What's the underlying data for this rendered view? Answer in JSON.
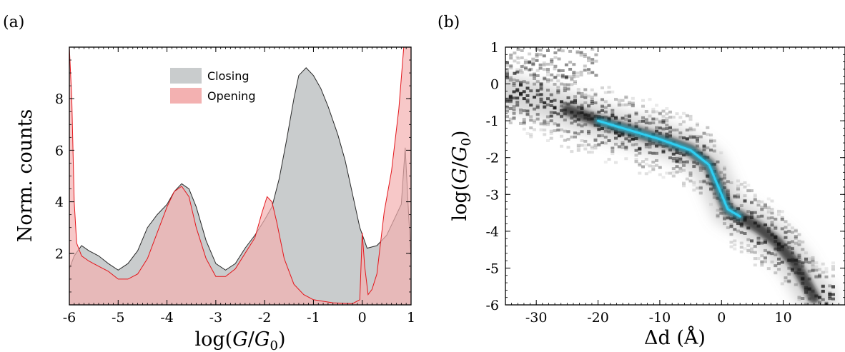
{
  "colors": {
    "closing_fill": "#c9cccd",
    "closing_line": "#2a2a2a",
    "opening_fill": "#f3b1b1",
    "opening_line": "#e4161b",
    "density_dark": "#111111",
    "density_highlight": "#2fd3f7"
  },
  "chart_data": [
    {
      "panel": "(a)",
      "type": "area",
      "xlabel": "log(G/G0)",
      "ylabel": "Norm. counts",
      "xlim": [
        -6,
        1
      ],
      "ylim": [
        0,
        10
      ],
      "x_ticks": [
        -6,
        -5,
        -4,
        -3,
        -2,
        -1,
        0,
        1
      ],
      "x_tick_labels": [
        "-6",
        "-5",
        "-4",
        "-3",
        "-2",
        "-1",
        "0",
        "1"
      ],
      "y_ticks": [
        2,
        4,
        6,
        8
      ],
      "y_tick_labels": [
        "2",
        "4",
        "6",
        "8"
      ],
      "legend": {
        "placement": "top-center",
        "entries": [
          "Closing",
          "Opening"
        ]
      },
      "series": [
        {
          "name": "Closing",
          "points": [
            [
              -6.0,
              1.4
            ],
            [
              -5.9,
              1.9
            ],
            [
              -5.75,
              2.3
            ],
            [
              -5.6,
              2.1
            ],
            [
              -5.4,
              1.9
            ],
            [
              -5.2,
              1.6
            ],
            [
              -5.0,
              1.35
            ],
            [
              -4.8,
              1.6
            ],
            [
              -4.6,
              2.1
            ],
            [
              -4.4,
              3.0
            ],
            [
              -4.2,
              3.5
            ],
            [
              -4.0,
              3.9
            ],
            [
              -3.85,
              4.4
            ],
            [
              -3.7,
              4.7
            ],
            [
              -3.55,
              4.5
            ],
            [
              -3.4,
              3.8
            ],
            [
              -3.2,
              2.5
            ],
            [
              -3.0,
              1.6
            ],
            [
              -2.8,
              1.35
            ],
            [
              -2.6,
              1.6
            ],
            [
              -2.4,
              2.2
            ],
            [
              -2.2,
              2.7
            ],
            [
              -2.0,
              3.3
            ],
            [
              -1.85,
              3.8
            ],
            [
              -1.7,
              4.9
            ],
            [
              -1.55,
              6.4
            ],
            [
              -1.4,
              8.0
            ],
            [
              -1.3,
              8.9
            ],
            [
              -1.15,
              9.2
            ],
            [
              -1.0,
              8.9
            ],
            [
              -0.85,
              8.4
            ],
            [
              -0.7,
              7.7
            ],
            [
              -0.5,
              6.6
            ],
            [
              -0.35,
              5.6
            ],
            [
              -0.2,
              4.3
            ],
            [
              -0.05,
              3.0
            ],
            [
              0.1,
              2.2
            ],
            [
              0.3,
              2.3
            ],
            [
              0.5,
              2.7
            ],
            [
              0.65,
              3.3
            ],
            [
              0.8,
              3.9
            ],
            [
              0.88,
              6.1
            ],
            [
              0.95,
              3.5
            ],
            [
              1.0,
              1.8
            ]
          ]
        },
        {
          "name": "Opening",
          "points": [
            [
              -6.0,
              10.0
            ],
            [
              -5.95,
              8.0
            ],
            [
              -5.9,
              4.0
            ],
            [
              -5.85,
              2.4
            ],
            [
              -5.75,
              1.9
            ],
            [
              -5.6,
              1.7
            ],
            [
              -5.4,
              1.5
            ],
            [
              -5.2,
              1.3
            ],
            [
              -5.0,
              1.0
            ],
            [
              -4.8,
              1.0
            ],
            [
              -4.6,
              1.2
            ],
            [
              -4.4,
              1.8
            ],
            [
              -4.2,
              2.8
            ],
            [
              -4.0,
              3.8
            ],
            [
              -3.85,
              4.4
            ],
            [
              -3.7,
              4.6
            ],
            [
              -3.55,
              4.2
            ],
            [
              -3.4,
              3.0
            ],
            [
              -3.2,
              1.8
            ],
            [
              -3.0,
              1.1
            ],
            [
              -2.8,
              1.1
            ],
            [
              -2.6,
              1.4
            ],
            [
              -2.4,
              2.0
            ],
            [
              -2.2,
              2.6
            ],
            [
              -2.05,
              3.6
            ],
            [
              -1.95,
              4.2
            ],
            [
              -1.85,
              4.0
            ],
            [
              -1.75,
              3.2
            ],
            [
              -1.6,
              1.8
            ],
            [
              -1.4,
              0.8
            ],
            [
              -1.2,
              0.4
            ],
            [
              -1.0,
              0.2
            ],
            [
              -0.6,
              0.08
            ],
            [
              -0.2,
              0.05
            ],
            [
              -0.05,
              0.2
            ],
            [
              0.0,
              2.8
            ],
            [
              0.05,
              1.5
            ],
            [
              0.12,
              0.4
            ],
            [
              0.2,
              0.6
            ],
            [
              0.3,
              1.2
            ],
            [
              0.45,
              3.6
            ],
            [
              0.6,
              5.2
            ],
            [
              0.75,
              7.6
            ],
            [
              0.85,
              10.0
            ],
            [
              1.0,
              10.0
            ]
          ]
        }
      ]
    },
    {
      "panel": "(b)",
      "type": "heatmap",
      "xlabel": "Δd (Å)",
      "ylabel": "log(G/G0)",
      "xlim": [
        -35,
        20
      ],
      "ylim": [
        -6,
        1
      ],
      "x_ticks": [
        -30,
        -20,
        -10,
        0,
        10
      ],
      "x_tick_labels": [
        "-30",
        "-20",
        "-10",
        "0",
        "10"
      ],
      "y_ticks": [
        1,
        0,
        -1,
        -2,
        -3,
        -4,
        -5,
        -6
      ],
      "y_tick_labels": [
        "1",
        "0",
        "-1",
        "-2",
        "-3",
        "-4",
        "-5",
        "-6"
      ],
      "ridge": [
        [
          -35,
          -0.2
        ],
        [
          -30,
          -0.4
        ],
        [
          -25,
          -0.7
        ],
        [
          -20,
          -1.0
        ],
        [
          -15,
          -1.25
        ],
        [
          -10,
          -1.5
        ],
        [
          -5,
          -1.8
        ],
        [
          -2,
          -2.2
        ],
        [
          -1,
          -2.6
        ],
        [
          0,
          -3.0
        ],
        [
          1,
          -3.4
        ],
        [
          3,
          -3.6
        ],
        [
          6,
          -3.9
        ],
        [
          9,
          -4.3
        ],
        [
          12,
          -4.9
        ],
        [
          14,
          -5.5
        ],
        [
          15,
          -5.8
        ]
      ],
      "highlight_range_x": [
        -20,
        3
      ]
    }
  ],
  "panel_a": {
    "label": "(a)",
    "ylabel": "Norm. counts",
    "xlabel_pre": "log(",
    "xlabel_G": "G",
    "xlabel_slash": "/",
    "xlabel_G0": "G",
    "xlabel_sub": "0",
    "xlabel_post": ")",
    "legend_closing": "Closing",
    "legend_opening": "Opening"
  },
  "panel_b": {
    "label": "(b)",
    "xlabel": "Δd (Å)",
    "ylabel_pre": "log(",
    "ylabel_G": "G",
    "ylabel_slash": "/",
    "ylabel_G0": "G",
    "ylabel_sub": "0",
    "ylabel_post": ")"
  }
}
